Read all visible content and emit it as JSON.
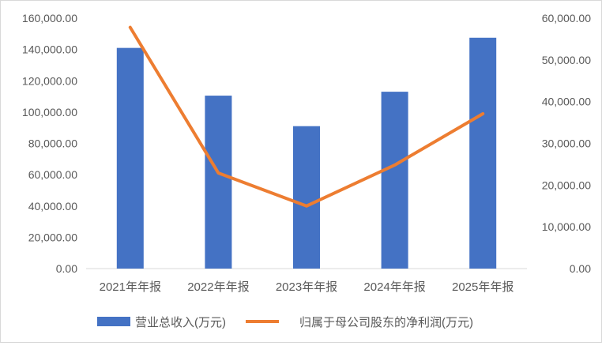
{
  "chart_data": {
    "type": "bar+line",
    "categories": [
      "2021年年报",
      "2022年年报",
      "2023年年报",
      "2024年年报",
      "2025年年报"
    ],
    "series": [
      {
        "name": "营业总收入(万元)",
        "type": "bar",
        "axis": "left",
        "color": "#4472C4",
        "values": [
          141000,
          110500,
          91000,
          113000,
          147500
        ]
      },
      {
        "name": "归属于母公司股东的净利润(万元)",
        "type": "line",
        "axis": "right",
        "color": "#ED7D31",
        "values": [
          57800,
          22900,
          15000,
          24800,
          37100
        ]
      }
    ],
    "y_left": {
      "range": [
        0,
        160000
      ],
      "ticks": [
        "0.00",
        "20,000.00",
        "40,000.00",
        "60,000.00",
        "80,000.00",
        "100,000.00",
        "120,000.00",
        "140,000.00",
        "160,000.00"
      ]
    },
    "y_right": {
      "range": [
        0,
        60000
      ],
      "ticks": [
        "0.00",
        "10,000.00",
        "20,000.00",
        "30,000.00",
        "40,000.00",
        "50,000.00",
        "60,000.00"
      ]
    },
    "grid": false,
    "legend": "bottom"
  }
}
